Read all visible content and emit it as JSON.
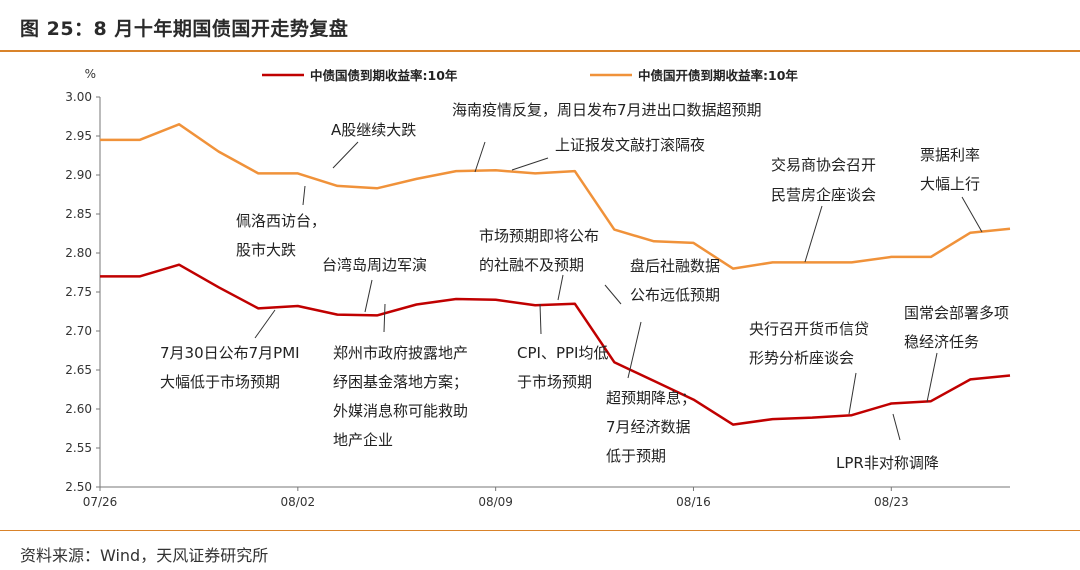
{
  "figure": {
    "title": "图 25：8 月十年期国债国开走势复盘",
    "source": "资料来源：Wind，天风证券研究所"
  },
  "chart_data": {
    "type": "line",
    "ylabel": "%",
    "ylim": [
      2.5,
      3.0
    ],
    "yticks": [
      "3.00",
      "2.95",
      "2.90",
      "2.85",
      "2.80",
      "2.75",
      "2.70",
      "2.65",
      "2.60",
      "2.55",
      "2.50"
    ],
    "x": [
      "07/26",
      "07/27",
      "07/28",
      "07/29",
      "08/01",
      "08/02",
      "08/03",
      "08/04",
      "08/05",
      "08/08",
      "08/09",
      "08/10",
      "08/11",
      "08/12",
      "08/15",
      "08/16",
      "08/17",
      "08/18",
      "08/19",
      "08/22",
      "08/23",
      "08/24",
      "08/25",
      "08/26"
    ],
    "xticks": [
      "07/26",
      "08/02",
      "08/09",
      "08/16",
      "08/23"
    ],
    "series": [
      {
        "name": "中债国债到期收益率:10年",
        "color": "#c00000",
        "values": [
          2.77,
          2.77,
          2.785,
          2.756,
          2.729,
          2.732,
          2.721,
          2.72,
          2.734,
          2.741,
          2.74,
          2.733,
          2.735,
          2.66,
          2.636,
          2.612,
          2.58,
          2.587,
          2.589,
          2.592,
          2.607,
          2.61,
          2.638,
          2.643
        ]
      },
      {
        "name": "中债国开债到期收益率:10年",
        "color": "#f0923a",
        "values": [
          2.945,
          2.945,
          2.965,
          2.93,
          2.902,
          2.902,
          2.886,
          2.883,
          2.895,
          2.905,
          2.906,
          2.902,
          2.905,
          2.83,
          2.815,
          2.813,
          2.78,
          2.788,
          2.788,
          2.788,
          2.795,
          2.795,
          2.826,
          2.831
        ]
      }
    ],
    "annotations": [
      {
        "lines": [
          "A股继续大跌"
        ]
      },
      {
        "lines": [
          "海南疫情反复，周日发布7月进出口数据超预期"
        ]
      },
      {
        "lines": [
          "上证报发文敲打滚隔夜"
        ]
      },
      {
        "lines": [
          "交易商协会召开",
          "民营房企座谈会"
        ]
      },
      {
        "lines": [
          "票据利率",
          "大幅上行"
        ]
      },
      {
        "lines": [
          "佩洛西访台，",
          "股市大跌"
        ]
      },
      {
        "lines": [
          "台湾岛周边军演"
        ]
      },
      {
        "lines": [
          "市场预期即将公布",
          "的社融不及预期"
        ]
      },
      {
        "lines": [
          "盘后社融数据",
          "公布远低预期"
        ]
      },
      {
        "lines": [
          "国常会部署多项",
          "稳经济任务"
        ]
      },
      {
        "lines": [
          "央行召开货币信贷",
          "形势分析座谈会"
        ]
      },
      {
        "lines": [
          "7月30日公布7月PMI",
          "大幅低于市场预期"
        ]
      },
      {
        "lines": [
          "郑州市政府披露地产",
          "纾困基金落地方案；",
          "外媒消息称可能救助",
          "地产企业"
        ]
      },
      {
        "lines": [
          "CPI、PPI均低",
          "于市场预期"
        ]
      },
      {
        "lines": [
          "超预期降息；",
          "7月经济数据",
          "低于预期"
        ]
      },
      {
        "lines": [
          "LPR非对称调降"
        ]
      }
    ]
  }
}
